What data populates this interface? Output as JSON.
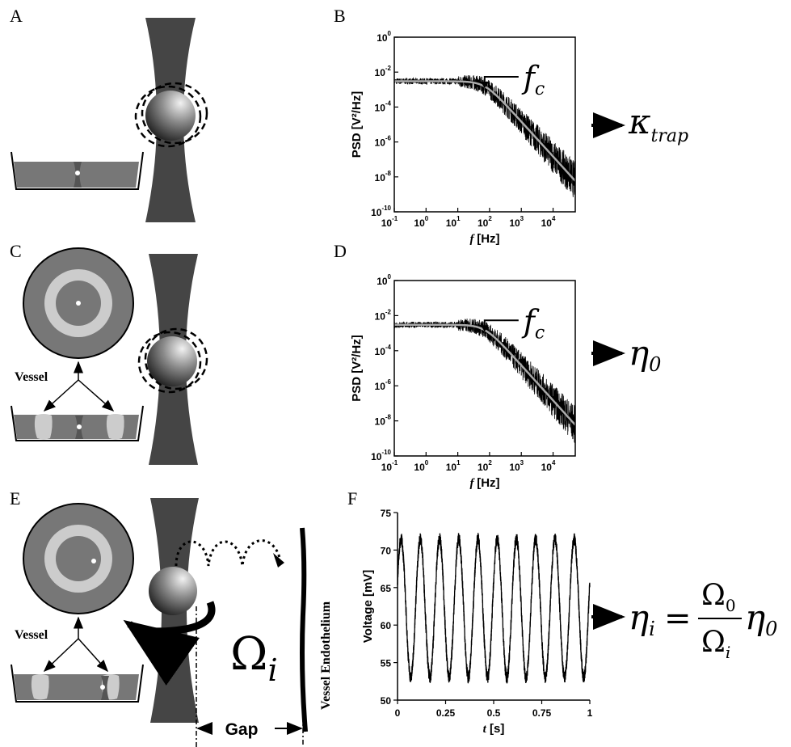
{
  "panel_labels": {
    "a": "A",
    "b": "B",
    "c": "C",
    "d": "D",
    "e": "E",
    "f": "F"
  },
  "psd": {
    "ylabel": "PSD [V²/Hz]",
    "xlabel_var": "f",
    "xlabel_unit": "[Hz]",
    "ytick_base": "10",
    "yticks_exp": [
      "0",
      "-2",
      "-4",
      "-6",
      "-8",
      "-10"
    ],
    "xtick_base": "10",
    "xticks_exp": [
      "-1",
      "0",
      "1",
      "2",
      "3",
      "4"
    ],
    "fc_label": "f",
    "fc_sub": "c"
  },
  "voltage": {
    "ylabel": "Voltage [mV]",
    "xlabel_var": "t",
    "xlabel_unit": "[s]",
    "yticks": [
      "75",
      "70",
      "65",
      "60",
      "55",
      "50"
    ],
    "xticks": [
      "0",
      "0.25",
      "0.5",
      "0.75",
      "1"
    ]
  },
  "results": {
    "kappa": "κ",
    "kappa_sub": "trap",
    "eta": "η",
    "eta0_sub": "0",
    "eta_i_sub": "i",
    "equals": "=",
    "omega": "Ω",
    "omega0_sub": "0",
    "omega_i_sub": "i"
  },
  "labels": {
    "vessel": "Vessel",
    "vessel_endothelium": "Vessel Endothelium",
    "gap": "Gap",
    "omega_big": "Ω",
    "omega_big_sub": "i"
  },
  "chart_data": [
    {
      "type": "line",
      "panel": "B",
      "title": "",
      "xlabel": "f [Hz]",
      "ylabel": "PSD [V²/Hz]",
      "xscale": "log",
      "yscale": "log",
      "xlim": [
        0.1,
        50000
      ],
      "ylim": [
        1e-10,
        1
      ],
      "corner_frequency_hz": 70,
      "series": [
        {
          "x": [
            0.1,
            1,
            10,
            70,
            100,
            1000,
            10000,
            50000
          ],
          "y": [
            0.003,
            0.003,
            0.003,
            0.0015,
            0.0008,
            1e-05,
            1e-07,
            3e-09
          ]
        }
      ]
    },
    {
      "type": "line",
      "panel": "D",
      "title": "",
      "xlabel": "f [Hz]",
      "ylabel": "PSD [V²/Hz]",
      "xscale": "log",
      "yscale": "log",
      "xlim": [
        0.1,
        50000
      ],
      "ylim": [
        1e-10,
        1
      ],
      "corner_frequency_hz": 70,
      "series": [
        {
          "x": [
            0.1,
            1,
            10,
            70,
            100,
            1000,
            10000,
            50000
          ],
          "y": [
            0.003,
            0.003,
            0.003,
            0.0015,
            0.0008,
            1e-05,
            1e-07,
            3e-09
          ]
        }
      ]
    },
    {
      "type": "line",
      "panel": "F",
      "title": "",
      "xlabel": "t [s]",
      "ylabel": "Voltage [mV]",
      "xlim": [
        0,
        1
      ],
      "ylim": [
        50,
        75
      ],
      "oscillation": {
        "cycles": 10,
        "min_mv": 53,
        "max_mv": 71.5
      }
    }
  ]
}
